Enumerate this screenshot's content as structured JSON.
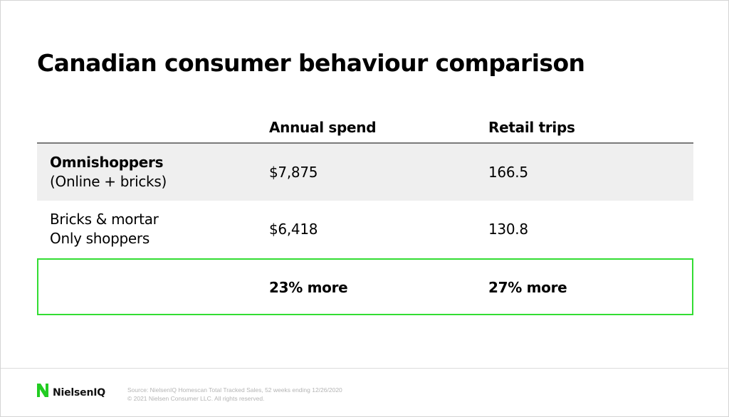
{
  "title": "Canadian consumer behaviour comparison",
  "chart_data": {
    "type": "table",
    "columns": [
      "",
      "Annual spend",
      "Retail trips"
    ],
    "rows": [
      {
        "label_bold": "Omnishoppers",
        "label_sub": "(Online + bricks)",
        "annual_spend": "$7,875",
        "retail_trips": "166.5",
        "shaded": true
      },
      {
        "label_line1": "Bricks & mortar",
        "label_line2": "Only shoppers",
        "annual_spend": "$6,418",
        "retail_trips": "130.8",
        "shaded": false
      }
    ],
    "comparison": {
      "annual_spend": "23% more",
      "retail_trips": "27% more"
    },
    "highlight_color": "#33dd33"
  },
  "footer": {
    "logo_text": "NielsenIQ",
    "source_line1": "Source: NielsenIQ Homescan Total Tracked Sales, 52 weeks ending 12/26/2020",
    "source_line2": "© 2021 Nielsen Consumer LLC. All rights reserved."
  },
  "colors": {
    "brand_green": "#22cc22",
    "highlight_border": "#33dd33",
    "shaded_row": "#efefef"
  }
}
